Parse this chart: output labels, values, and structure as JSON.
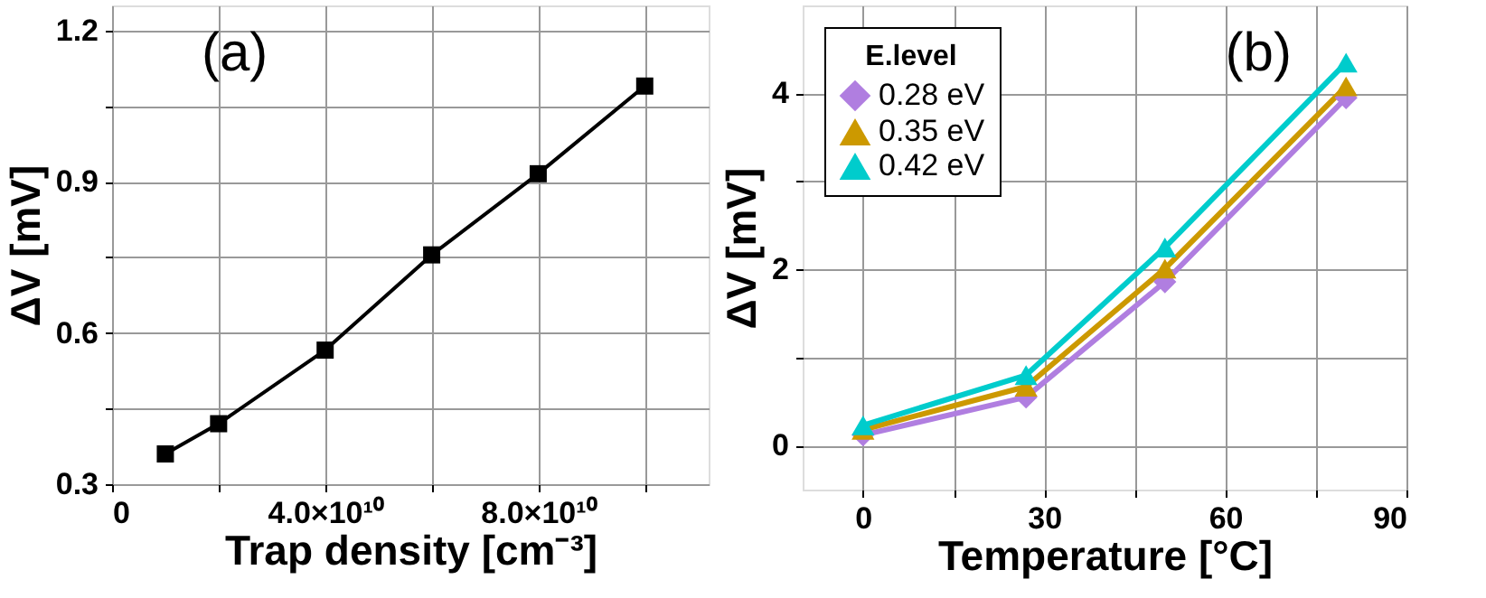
{
  "chart_data": [
    {
      "type": "line",
      "xlabel": "Trap density [cm⁻³]",
      "ylabel": "ΔV [mV]",
      "annotations": [
        "(a)"
      ],
      "x": [
        10000000000.0,
        20000000000.0,
        40000000000.0,
        60000000000.0,
        80000000000.0,
        100000000000.0
      ],
      "series": [
        {
          "color": "#000000",
          "values": [
            0.36,
            0.42,
            0.566,
            0.755,
            0.916,
            1.09
          ]
        }
      ],
      "xlim": [
        0,
        112000000000.0
      ],
      "xticks": [
        0,
        {
          "value": 20000000000.0,
          "label": null
        },
        {
          "value": 40000000000.0,
          "label": "4.0×10¹⁰"
        },
        {
          "value": 60000000000.0,
          "label": null
        },
        {
          "value": 80000000000.0,
          "label": "8.0×10¹⁰"
        },
        {
          "value": 100000000000.0,
          "label": null
        }
      ],
      "ylim": [
        0.3,
        1.25
      ],
      "yticks": [
        {
          "value": 0.3,
          "label": "0.3"
        },
        {
          "value": 0.45,
          "label": null
        },
        {
          "value": 0.6,
          "label": "0.6"
        },
        {
          "value": 0.75,
          "label": null
        },
        {
          "value": 0.9,
          "label": "0.9"
        },
        {
          "value": 1.05,
          "label": null
        },
        {
          "value": 1.2,
          "label": "1.2"
        }
      ],
      "grid": true,
      "marker": "square",
      "legend": false
    },
    {
      "type": "line",
      "xlabel": "Temperature [°C]",
      "ylabel": "ΔV [mV]",
      "annotations": [
        "(b)"
      ],
      "legend_title": "E.level",
      "x": [
        0,
        27,
        50,
        80
      ],
      "series": [
        {
          "name": "0.28 eV",
          "color": "#b07ee0",
          "marker": "diamond",
          "values": [
            0.12,
            0.55,
            1.86,
            3.95
          ]
        },
        {
          "name": "0.35 eV",
          "color": "#cc9900",
          "marker": "triangle",
          "values": [
            0.18,
            0.67,
            2.01,
            4.08
          ]
        },
        {
          "name": "0.42 eV",
          "color": "#00cccc",
          "marker": "triangle",
          "values": [
            0.23,
            0.8,
            2.25,
            4.35
          ]
        }
      ],
      "xlim": [
        -10,
        90
      ],
      "xticks": [
        0,
        {
          "value": 15,
          "label": null
        },
        30,
        {
          "value": 45,
          "label": null
        },
        60,
        {
          "value": 75,
          "label": null
        },
        90
      ],
      "ylim": [
        -0.5,
        5
      ],
      "yticks": [
        0,
        {
          "value": 1,
          "label": null
        },
        2,
        {
          "value": 3,
          "label": null
        },
        4
      ],
      "grid": true,
      "legend": "top left"
    }
  ]
}
